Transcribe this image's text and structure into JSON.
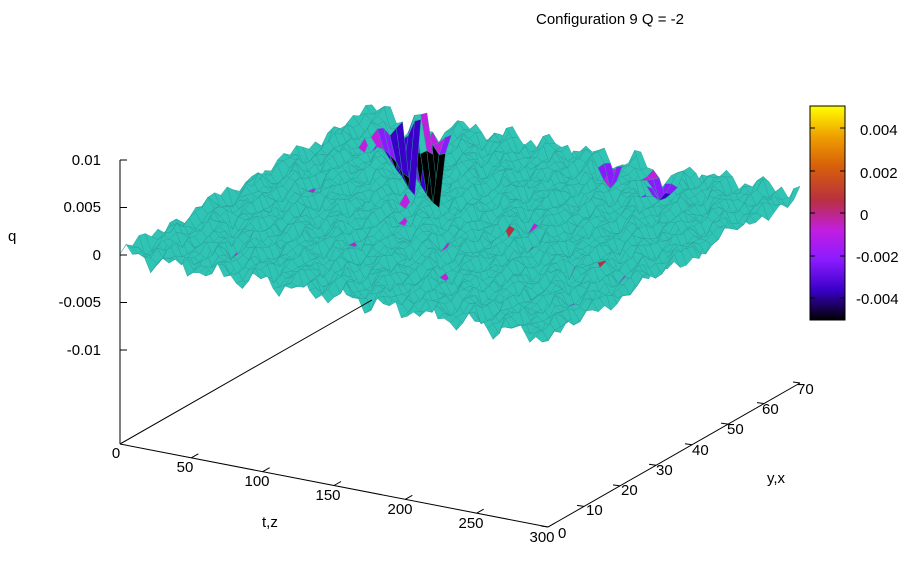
{
  "chart_data": {
    "type": "surface3d",
    "title": "Configuration  9  Q = -2",
    "zlabel": "q",
    "xlabel": "t,z",
    "ylabel": "y,x",
    "xlim": [
      0,
      300
    ],
    "ylim": [
      0,
      70
    ],
    "zlim": [
      -0.01,
      0.01
    ],
    "x_ticks": [
      "0",
      "50",
      "100",
      "150",
      "200",
      "250",
      "300"
    ],
    "y_ticks": [
      "0",
      "10",
      "20",
      "30",
      "40",
      "50",
      "60",
      "70"
    ],
    "z_ticks": [
      "0.01",
      "0.005",
      "0",
      "-0.005",
      "-0.01"
    ],
    "colorbar": {
      "range": [
        -0.005,
        0.005
      ],
      "ticks": [
        "0.004",
        "0.002",
        "0",
        "-0.002",
        "-0.004"
      ],
      "colors": [
        "#000000",
        "#3a00c8",
        "#8a1bff",
        "#c21ee0",
        "#b8303f",
        "#d8600a",
        "#f0a000",
        "#ffff00"
      ]
    },
    "surface": {
      "mesh_color": "#2fc4b4",
      "feature": "mostly flat surface near q = 0 with small oscillations; deep negative spikes to about -0.01 near t,z ≈ 25-50 at the y,x ≈ 70 edge"
    }
  }
}
